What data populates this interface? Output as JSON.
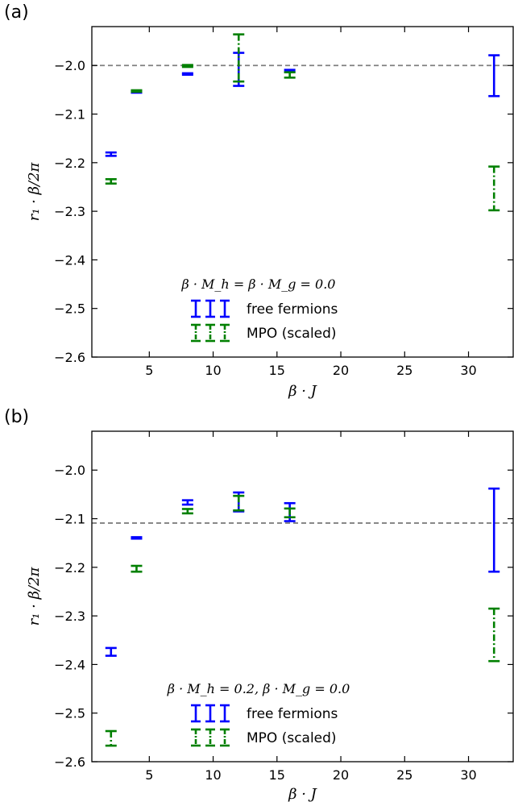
{
  "chart_data": [
    {
      "type": "errorbar",
      "panel_label": "(a)",
      "xlabel": "β · J",
      "ylabel": "r₁ · β/2π",
      "xlim": [
        0.5,
        33.5
      ],
      "ylim": [
        -2.6,
        -1.92
      ],
      "xticks": [
        5,
        10,
        15,
        20,
        25,
        30
      ],
      "yticks": [
        -2.6,
        -2.5,
        -2.4,
        -2.3,
        -2.2,
        -2.1,
        -2.0
      ],
      "ytick_labels": [
        "−2.6",
        "−2.5",
        "−2.4",
        "−2.3",
        "−2.2",
        "−2.1",
        "−2.0"
      ],
      "reference_line": -2.0,
      "legend_title": "β · M_h = β · M_g = 0.0",
      "legend_location": "lower-center",
      "series": [
        {
          "name": "free fermions",
          "color": "#0000ff",
          "dash": "solid",
          "points": [
            {
              "x": 2,
              "low": -2.186,
              "high": -2.179
            },
            {
              "x": 4,
              "low": -2.056,
              "high": -2.052
            },
            {
              "x": 8,
              "low": -2.019,
              "high": -2.016
            },
            {
              "x": 12,
              "low": -2.042,
              "high": -1.974
            },
            {
              "x": 16,
              "low": -2.013,
              "high": -2.009
            },
            {
              "x": 32,
              "low": -2.063,
              "high": -1.979
            }
          ]
        },
        {
          "name": "MPO (scaled)",
          "color": "#008000",
          "dash": "dashdot",
          "points": [
            {
              "x": 2,
              "low": -2.243,
              "high": -2.234
            },
            {
              "x": 4,
              "low": -2.054,
              "high": -2.051
            },
            {
              "x": 8,
              "low": -2.003,
              "high": -1.999
            },
            {
              "x": 12,
              "low": -2.033,
              "high": -1.936
            },
            {
              "x": 16,
              "low": -2.025,
              "high": -2.014
            },
            {
              "x": 32,
              "low": -2.298,
              "high": -2.208
            }
          ]
        }
      ]
    },
    {
      "type": "errorbar",
      "panel_label": "(b)",
      "xlabel": "β · J",
      "ylabel": "r₁ · β/2π",
      "xlim": [
        0.5,
        33.5
      ],
      "ylim": [
        -2.6,
        -1.92
      ],
      "xticks": [
        5,
        10,
        15,
        20,
        25,
        30
      ],
      "yticks": [
        -2.6,
        -2.5,
        -2.4,
        -2.3,
        -2.2,
        -2.1,
        -2.0
      ],
      "ytick_labels": [
        "−2.6",
        "−2.5",
        "−2.4",
        "−2.3",
        "−2.2",
        "−2.1",
        "−2.0"
      ],
      "reference_line": -2.109,
      "legend_title": "β · M_h = 0.2, β · M_g = 0.0",
      "legend_location": "lower-center",
      "series": [
        {
          "name": "free fermions",
          "color": "#0000ff",
          "dash": "solid",
          "points": [
            {
              "x": 2,
              "low": -2.382,
              "high": -2.366
            },
            {
              "x": 4,
              "low": -2.141,
              "high": -2.138
            },
            {
              "x": 8,
              "low": -2.071,
              "high": -2.062
            },
            {
              "x": 12,
              "low": -2.085,
              "high": -2.046
            },
            {
              "x": 16,
              "low": -2.105,
              "high": -2.068
            },
            {
              "x": 32,
              "low": -2.209,
              "high": -2.038
            }
          ]
        },
        {
          "name": "MPO (scaled)",
          "color": "#008000",
          "dash": "dashdot",
          "points": [
            {
              "x": 2,
              "low": -2.567,
              "high": -2.537
            },
            {
              "x": 4,
              "low": -2.209,
              "high": -2.197
            },
            {
              "x": 8,
              "low": -2.089,
              "high": -2.08
            },
            {
              "x": 12,
              "low": -2.083,
              "high": -2.053
            },
            {
              "x": 16,
              "low": -2.097,
              "high": -2.079
            },
            {
              "x": 32,
              "low": -2.393,
              "high": -2.285
            }
          ]
        }
      ]
    }
  ]
}
